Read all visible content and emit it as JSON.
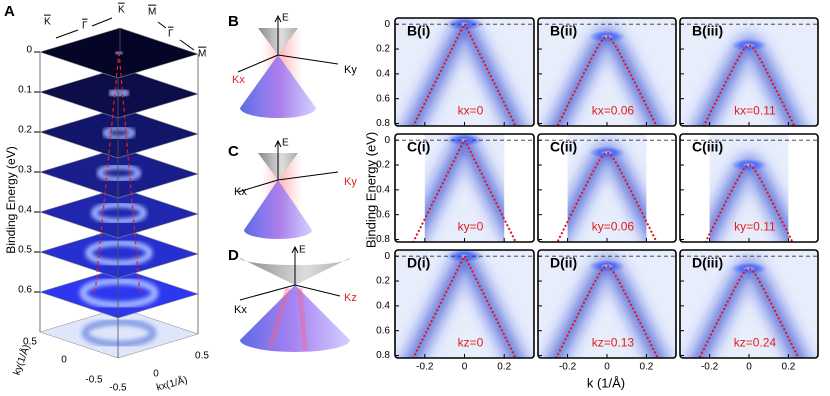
{
  "panel_a": {
    "label": "A",
    "axis_label": "Binding Energy (eV)",
    "energies": [
      0,
      0.1,
      0.2,
      0.3,
      0.4,
      0.5,
      0.6
    ],
    "top_labels": [
      "K",
      "Γ",
      "K",
      "M",
      "Γ",
      "M"
    ],
    "ky_label": "ky(1/Å)",
    "kx_label": "kx(1/Å)",
    "ky_ticks": [
      0.5,
      0,
      -0.5
    ],
    "kx_ticks": [
      -0.5,
      0,
      0.5
    ]
  },
  "cones": [
    {
      "label": "B",
      "axes": [
        "E",
        "Kx",
        "Ky"
      ]
    },
    {
      "label": "C",
      "axes": [
        "E",
        "Kx",
        "Ky"
      ]
    },
    {
      "label": "D",
      "axes": [
        "E",
        "Kx",
        "Kz"
      ]
    }
  ],
  "arpes": {
    "y_label": "Binding Energy (eV)",
    "x_label": "k (1/Å)",
    "k_lim": [
      -0.35,
      0.35
    ],
    "k_ticks": [
      -0.2,
      0,
      0.2
    ],
    "e_lim": [
      -0.05,
      0.82
    ],
    "e_ticks": [
      0,
      0.2,
      0.4,
      0.6,
      0.8
    ],
    "panels": [
      [
        {
          "label": "B(i)",
          "note": "kx=0",
          "apex_energy": 0
        },
        {
          "label": "B(ii)",
          "note": "kx=0.06",
          "apex_energy": 0.1
        },
        {
          "label": "B(iii)",
          "note": "kx=0.11",
          "apex_energy": 0.17
        }
      ],
      [
        {
          "label": "C(i)",
          "note": "ky=0",
          "apex_energy": 0
        },
        {
          "label": "C(ii)",
          "note": "ky=0.06",
          "apex_energy": 0.1
        },
        {
          "label": "C(iii)",
          "note": "ky=0.11",
          "apex_energy": 0.2
        }
      ],
      [
        {
          "label": "D(i)",
          "note": "kz=0",
          "apex_energy": 0
        },
        {
          "label": "D(ii)",
          "note": "kz=0.13",
          "apex_energy": 0.08
        },
        {
          "label": "D(iii)",
          "note": "kz=0.24",
          "apex_energy": 0.1
        }
      ]
    ]
  }
}
